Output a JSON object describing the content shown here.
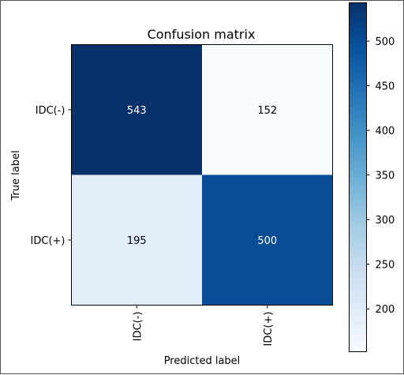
{
  "chart_data": {
    "type": "heatmap",
    "title": "Confusion matrix",
    "xlabel": "Predicted label",
    "ylabel": "True label",
    "x_categories": [
      "IDC(-)",
      "IDC(+)"
    ],
    "y_categories": [
      "IDC(-)",
      "IDC(+)"
    ],
    "values": [
      [
        543,
        152
      ],
      [
        195,
        500
      ]
    ],
    "colormap": "Blues",
    "colorbar": {
      "range": [
        152,
        543
      ],
      "ticks": [
        200,
        250,
        300,
        350,
        400,
        450,
        500
      ]
    },
    "grid": false
  }
}
